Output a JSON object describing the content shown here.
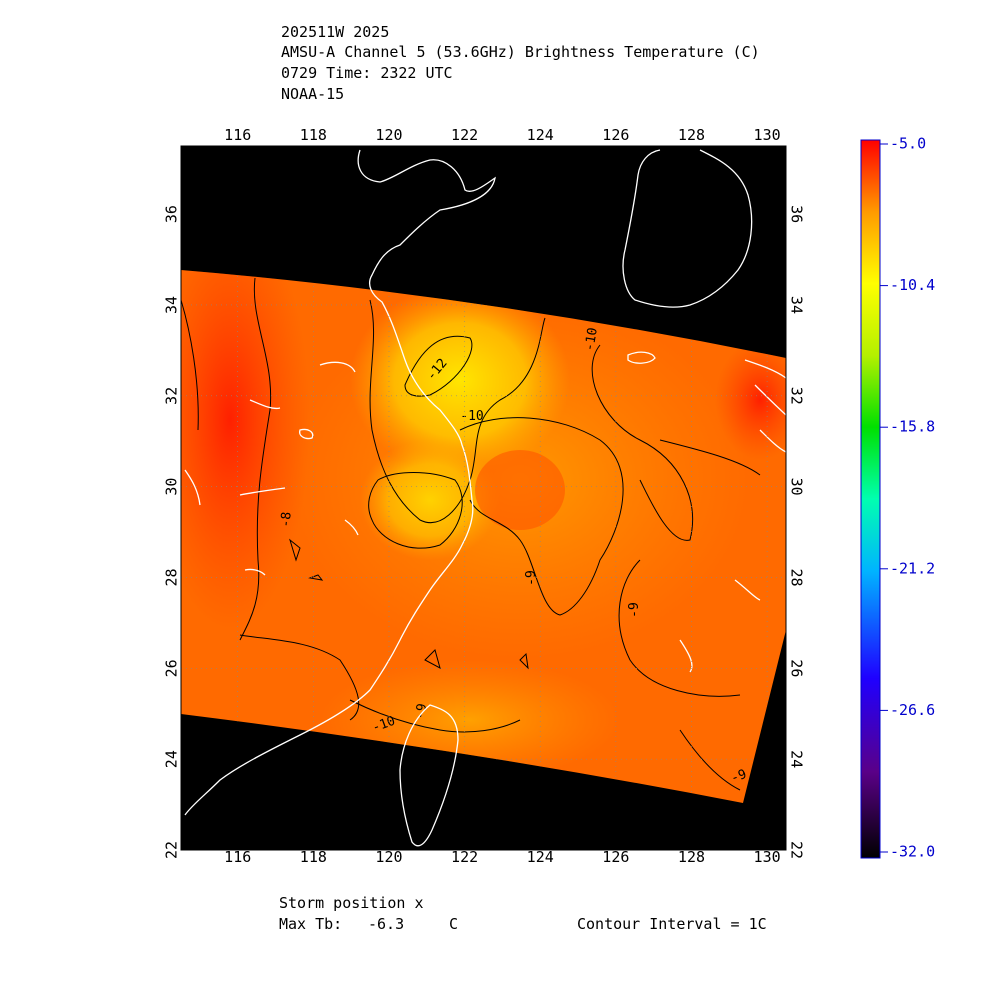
{
  "header": {
    "line1": "202511W 2025",
    "line2": "AMSU-A Channel 5 (53.6GHz) Brightness Temperature (C)",
    "line3": "0729 Time: 2322 UTC",
    "line4": "NOAA-15"
  },
  "map": {
    "lon_ticks": [
      "116",
      "118",
      "120",
      "122",
      "124",
      "126",
      "128",
      "130"
    ],
    "lat_ticks": [
      "22",
      "24",
      "26",
      "28",
      "30",
      "32",
      "34",
      "36"
    ],
    "lon_range": [
      114.5,
      130.5
    ],
    "lat_range": [
      22,
      37.5
    ],
    "contour_labels": [
      "-12",
      "-10",
      "-10",
      "-9",
      "-9",
      "-9",
      "-9",
      "-8",
      "-10"
    ]
  },
  "colorbar": {
    "ticks": [
      "-5.0",
      "-10.4",
      "-15.8",
      "-21.2",
      "-26.6",
      "-32.0"
    ],
    "range": [
      -32.0,
      -5.0
    ],
    "tick_color": "#0000cc"
  },
  "footer": {
    "storm_position": "Storm position x",
    "max_tb_label": "Max Tb:",
    "max_tb_value": "-6.3",
    "max_tb_unit": "C",
    "contour_interval": "Contour Interval = 1C"
  }
}
